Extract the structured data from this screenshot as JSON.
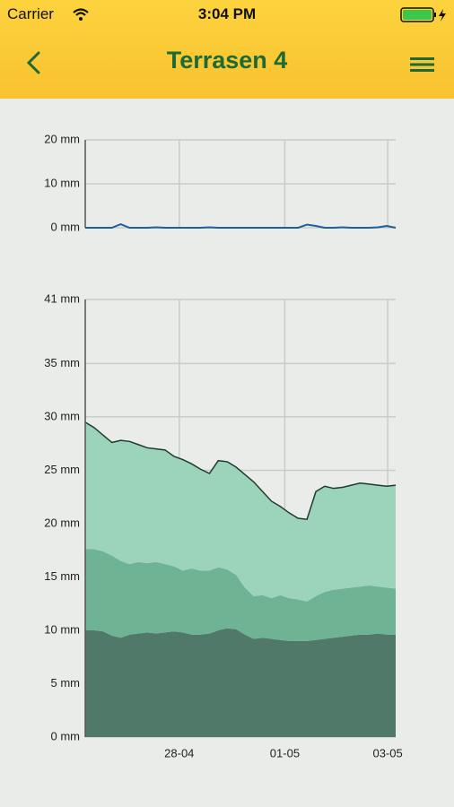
{
  "status": {
    "carrier": "Carrier",
    "time": "3:04 PM"
  },
  "header": {
    "title": "Terrasen 4"
  },
  "chart_data": [
    {
      "type": "line",
      "x": [
        0,
        1,
        2,
        3,
        4,
        5,
        6,
        7,
        8,
        9,
        10,
        11,
        12,
        13,
        14,
        15,
        16,
        17,
        18,
        19,
        20,
        21,
        22,
        23,
        24,
        25,
        26,
        27,
        28,
        29,
        30,
        31,
        32,
        33,
        34,
        35
      ],
      "xlim": [
        0,
        35
      ],
      "series": [
        {
          "color": "#1f5fa0",
          "values": [
            0,
            0,
            0,
            0,
            0.8,
            0,
            0,
            0,
            0.1,
            0,
            0,
            0,
            0,
            0,
            0.1,
            0,
            0,
            0,
            0,
            0,
            0,
            0,
            0,
            0,
            0,
            0.7,
            0.4,
            0,
            0,
            0.1,
            0,
            0,
            0,
            0.1,
            0.4,
            0
          ]
        }
      ],
      "ylim": [
        0,
        20
      ],
      "yticks": [
        {
          "value": 0,
          "label": "0 mm"
        },
        {
          "value": 10,
          "label": "10 mm"
        },
        {
          "value": 20,
          "label": "20 mm"
        }
      ],
      "grid": true
    },
    {
      "type": "stacked_area",
      "x": [
        0,
        1,
        2,
        3,
        4,
        5,
        6,
        7,
        8,
        9,
        10,
        11,
        12,
        13,
        14,
        15,
        16,
        17,
        18,
        19,
        20,
        21,
        22,
        23,
        24,
        25,
        26,
        27,
        28,
        29,
        30,
        31,
        32,
        33,
        34,
        35
      ],
      "xlim": [
        0,
        35
      ],
      "xticks": [
        {
          "value": 10.6,
          "label": "28-04"
        },
        {
          "value": 22.5,
          "label": "01-05"
        },
        {
          "value": 34.1,
          "label": "03-05"
        }
      ],
      "series": [
        {
          "color": "#51796a",
          "values": [
            10.0,
            10.0,
            9.9,
            9.5,
            9.3,
            9.6,
            9.7,
            9.8,
            9.7,
            9.8,
            9.9,
            9.8,
            9.6,
            9.6,
            9.7,
            10.0,
            10.2,
            10.1,
            9.6,
            9.2,
            9.3,
            9.2,
            9.1,
            9.0,
            9.0,
            9.0,
            9.1,
            9.2,
            9.3,
            9.4,
            9.5,
            9.6,
            9.6,
            9.7,
            9.6,
            9.6
          ]
        },
        {
          "color": "#6db394",
          "values": [
            7.6,
            7.6,
            7.5,
            7.5,
            7.2,
            6.6,
            6.7,
            6.5,
            6.7,
            6.4,
            6.1,
            5.8,
            6.2,
            6.0,
            5.9,
            5.9,
            5.5,
            5.1,
            4.4,
            4.0,
            4.0,
            3.8,
            4.2,
            4.0,
            3.9,
            3.7,
            4.1,
            4.4,
            4.5,
            4.5,
            4.5,
            4.5,
            4.6,
            4.4,
            4.4,
            4.3
          ]
        },
        {
          "color": "#9cd4bb",
          "outline": "#1f3b30",
          "values": [
            11.9,
            11.4,
            10.9,
            10.6,
            11.3,
            11.5,
            11.0,
            10.8,
            10.6,
            10.7,
            10.3,
            10.4,
            9.8,
            9.5,
            9.1,
            10.0,
            10.1,
            10.1,
            10.6,
            10.7,
            9.7,
            9.1,
            8.3,
            8.0,
            7.6,
            7.7,
            9.8,
            9.9,
            9.5,
            9.5,
            9.6,
            9.7,
            9.5,
            9.5,
            9.5,
            9.7
          ]
        }
      ],
      "ylim": [
        0,
        41
      ],
      "yticks": [
        {
          "value": 0,
          "label": "0 mm"
        },
        {
          "value": 5,
          "label": "5 mm"
        },
        {
          "value": 10,
          "label": "10 mm"
        },
        {
          "value": 15,
          "label": "15 mm"
        },
        {
          "value": 20,
          "label": "20 mm"
        },
        {
          "value": 25,
          "label": "25 mm"
        },
        {
          "value": 30,
          "label": "30 mm"
        },
        {
          "value": 35,
          "label": "35 mm"
        },
        {
          "value": 41,
          "label": "41 mm"
        }
      ],
      "grid": true
    }
  ]
}
